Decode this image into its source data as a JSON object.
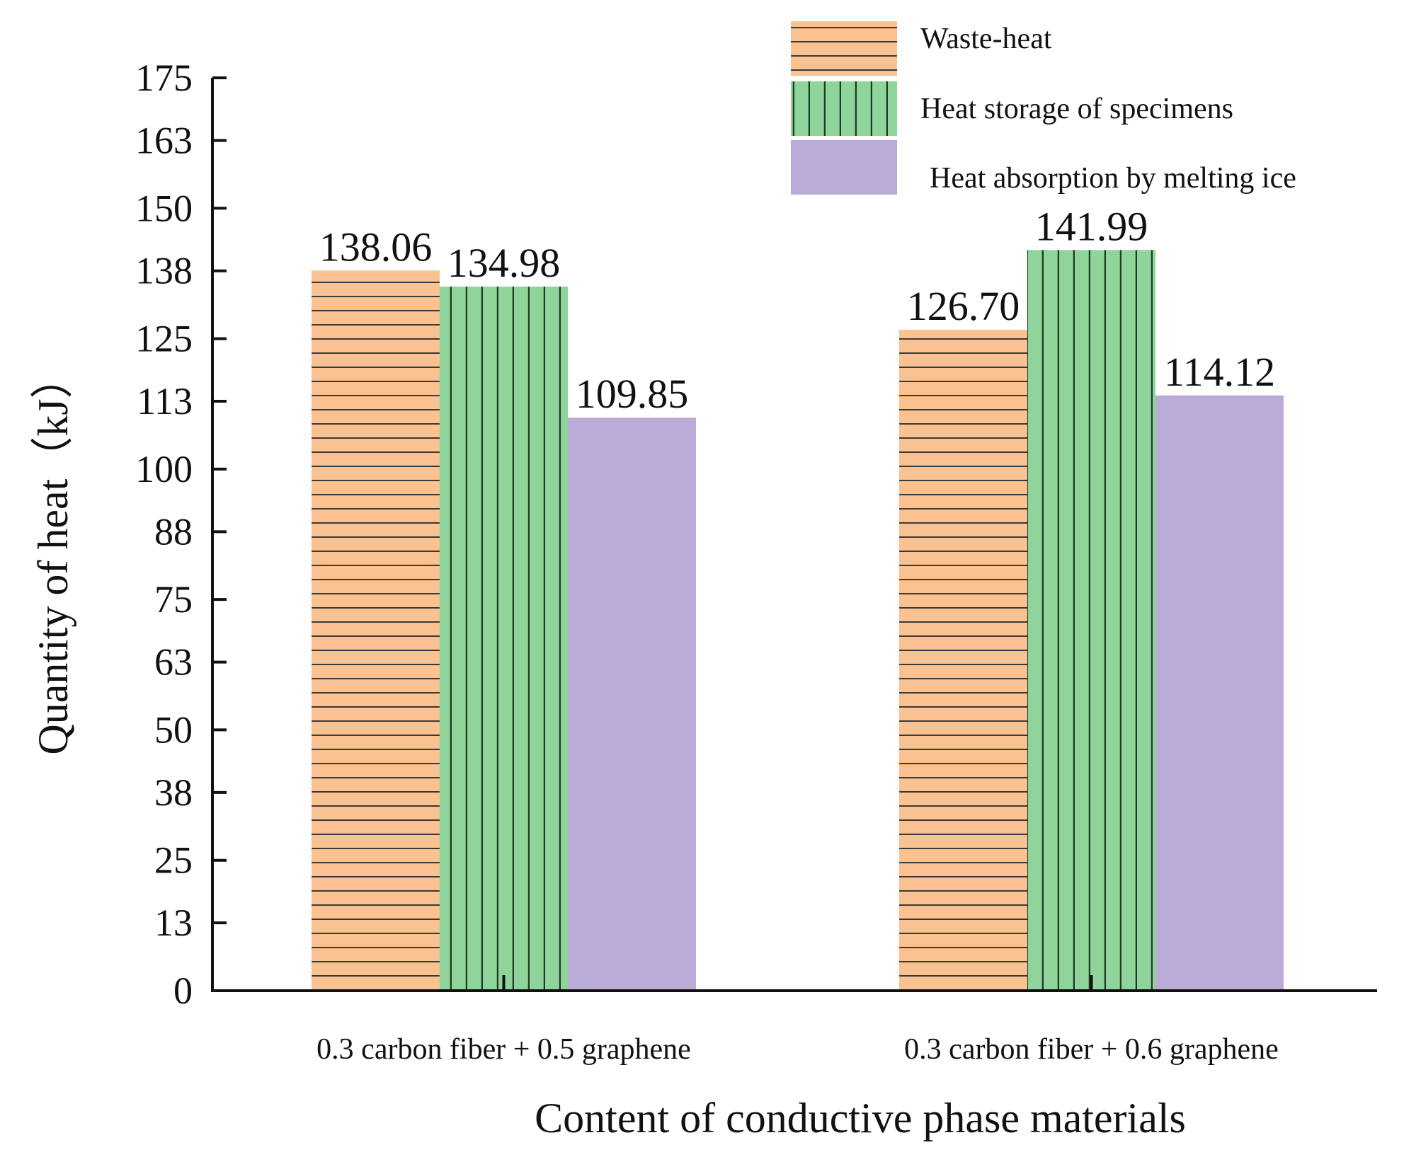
{
  "chart_data": {
    "type": "bar",
    "title": "",
    "xlabel": "Content of conductive phase materials",
    "ylabel": "Quantity of heat（kJ）",
    "categories": [
      "0.3 carbon fiber + 0.5 graphene",
      "0.3 carbon fiber + 0.6 graphene"
    ],
    "series": [
      {
        "name": "Waste-heat",
        "values": [
          138.06,
          126.7
        ],
        "labels": [
          "138.06",
          "126.70"
        ],
        "color": "#F9C290",
        "pattern": "horizontal"
      },
      {
        "name": "Heat storage of specimens",
        "values": [
          134.98,
          141.99
        ],
        "labels": [
          "134.98",
          "141.99"
        ],
        "color": "#8FD49A",
        "pattern": "vertical"
      },
      {
        "name": "Heat absorption by melting ice",
        "values": [
          109.85,
          114.12
        ],
        "labels": [
          "109.85",
          "114.12"
        ],
        "color": "#BBABD7",
        "pattern": "none"
      }
    ],
    "ylim": [
      0,
      175
    ],
    "yticks": [
      0,
      13,
      25,
      38,
      50,
      63,
      75,
      88,
      100,
      113,
      125,
      138,
      150,
      163,
      175
    ],
    "grid": false,
    "legend_position": "top-right"
  }
}
